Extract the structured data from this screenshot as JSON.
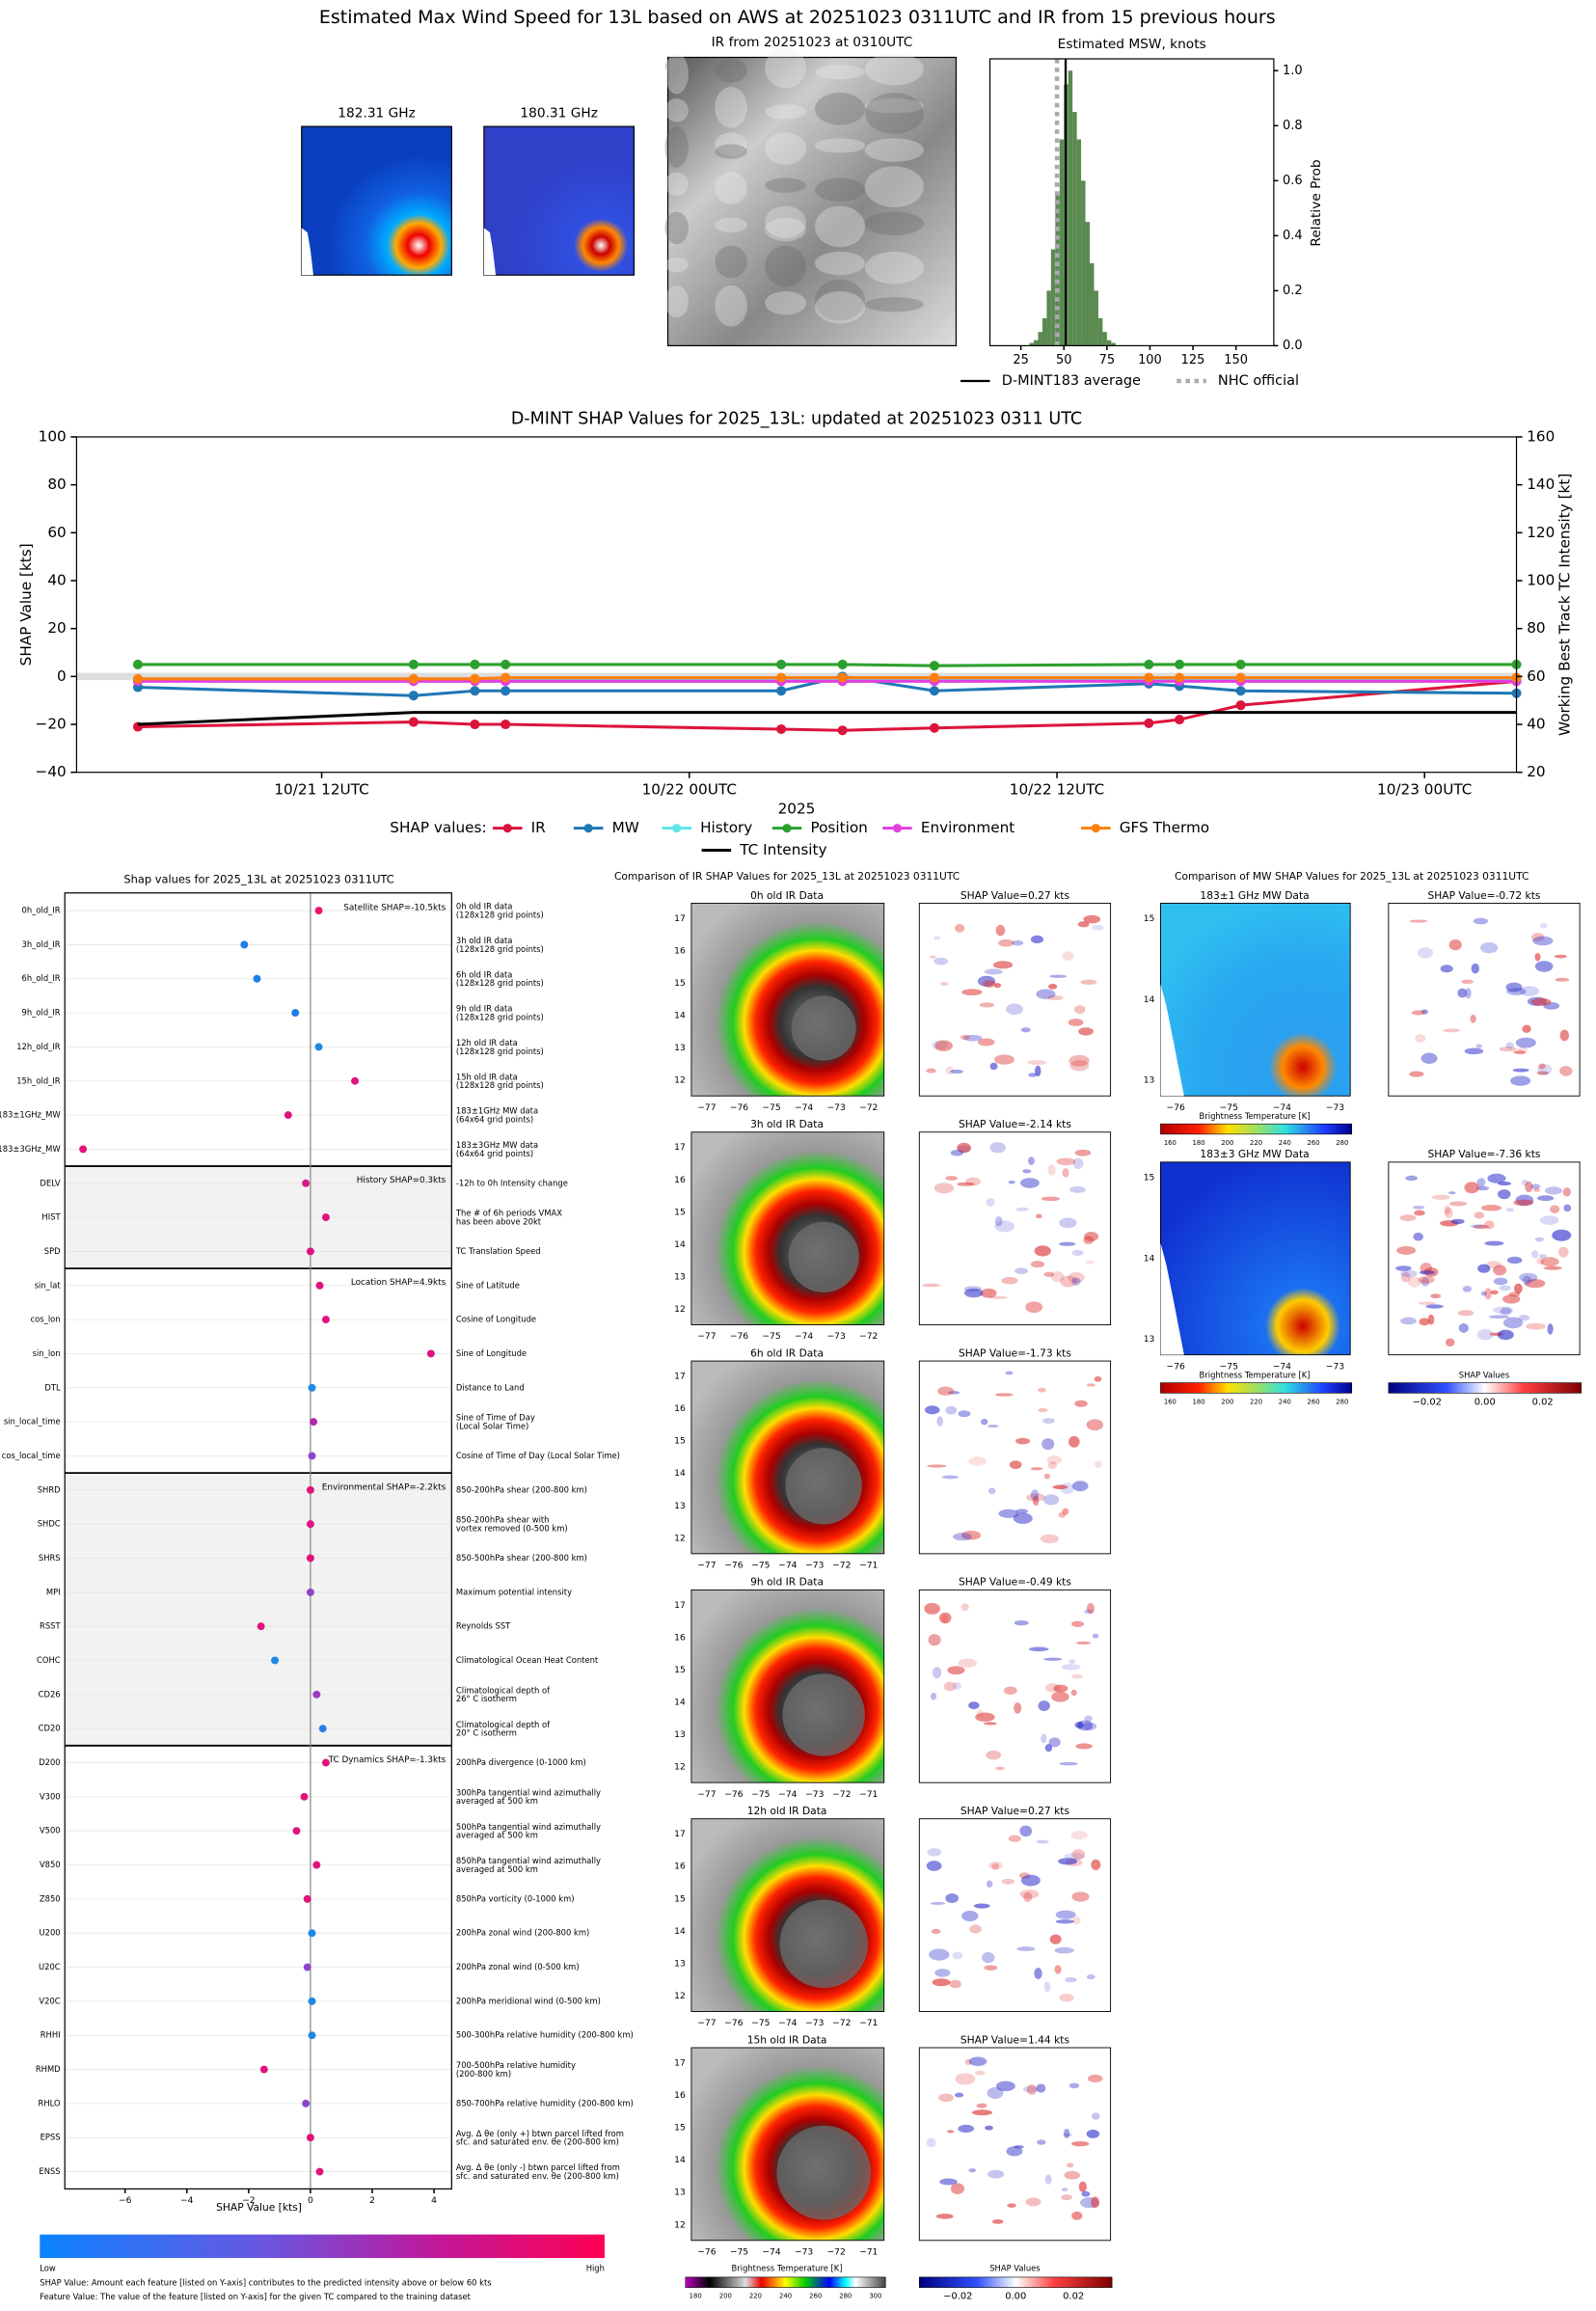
{
  "header": {
    "title": "Estimated Max Wind Speed for 13L based on AWS at 20251023 0311UTC and IR from 15 previous hours",
    "mw_titles": [
      "182.31 GHz",
      "180.31 GHz"
    ],
    "ir_title": "IR from 20251023 at 0310UTC"
  },
  "chart_data": [
    {
      "type": "histogram",
      "title": "Estimated MSW, knots",
      "ylabel": "Relative Prob",
      "color": "#5a8a50",
      "bins": [
        30,
        32.5,
        35,
        37.5,
        40,
        42.5,
        45,
        47.5,
        50,
        52.5,
        55,
        57.5,
        60,
        62.5,
        65,
        67.5,
        70,
        72.5,
        75,
        77.5,
        80
      ],
      "counts": [
        0.01,
        0.02,
        0.05,
        0.1,
        0.2,
        0.35,
        0.55,
        0.75,
        0.95,
        1.0,
        0.85,
        0.75,
        0.6,
        0.45,
        0.3,
        0.2,
        0.1,
        0.05,
        0.02,
        0.01
      ],
      "lines": [
        {
          "name": "D-MINT183 average",
          "value": 51,
          "color": "#000000",
          "style": "solid"
        },
        {
          "name": "NHC official",
          "value": 46,
          "color": "#aaaaaa",
          "style": "dotted"
        }
      ],
      "xlim": [
        7,
        172
      ],
      "xticks": [
        25,
        50,
        75,
        100,
        125,
        150
      ],
      "ylim": [
        0,
        1.043
      ],
      "yticks": [
        {
          "value": 0,
          "label": "0.0"
        },
        {
          "value": 0.2,
          "label": "0.2"
        },
        {
          "value": 0.4,
          "label": "0.4"
        },
        {
          "value": 0.6,
          "label": "0.6"
        },
        {
          "value": 0.8,
          "label": "0.8"
        },
        {
          "value": 1,
          "label": "1.0"
        }
      ]
    },
    {
      "type": "line",
      "title": "D-MINT SHAP Values for 2025_13L: updated at 20251023 0311 UTC",
      "xlabel": "2025",
      "ylabel": "SHAP Value [kts]",
      "y2label": "Working Best Track TC Intensity [kt]",
      "legend_title": "SHAP values:",
      "x": [
        "2025-10-21T06",
        "2025-10-21T15",
        "2025-10-21T17",
        "2025-10-21T18",
        "2025-10-22T03",
        "2025-10-22T05",
        "2025-10-22T08",
        "2025-10-22T15",
        "2025-10-22T16",
        "2025-10-22T18",
        "2025-10-23T03"
      ],
      "xlim": [
        "2025-10-21T04",
        "2025-10-23T03"
      ],
      "xticks": [
        {
          "value": "2025-10-21T12",
          "label": "10/21 12UTC"
        },
        {
          "value": "2025-10-22T00",
          "label": "10/22 00UTC"
        },
        {
          "value": "2025-10-22T12",
          "label": "10/22 12UTC"
        },
        {
          "value": "2025-10-23T00",
          "label": "10/23 00UTC"
        }
      ],
      "ylim": [
        -40,
        100
      ],
      "yticks": [
        {
          "value": -40,
          "label": "−40"
        },
        {
          "value": -20,
          "label": "−20"
        },
        0,
        20,
        40,
        60,
        80,
        100
      ],
      "y2lim": [
        20,
        160
      ],
      "y2ticks": [
        20,
        40,
        60,
        80,
        100,
        120,
        140,
        160
      ],
      "series": [
        {
          "name": "IR",
          "color": "#dc143c",
          "values": [
            -21,
            -19,
            -20,
            -20,
            -22,
            -22.5,
            -21.5,
            -19.5,
            -18,
            -12,
            -2
          ]
        },
        {
          "name": "MW",
          "color": "#1f77b4",
          "values": [
            -4.5,
            -8,
            -6,
            -6,
            -6,
            0,
            -6,
            -3,
            -4,
            -6,
            -7
          ]
        },
        {
          "name": "History",
          "color": "#5ee5e5",
          "values": [
            -1,
            -1,
            -1,
            -1,
            -1,
            -1,
            -1,
            -1,
            -1,
            -1,
            -1
          ]
        },
        {
          "name": "Position",
          "color": "#2ca02c",
          "values": [
            5,
            5,
            5,
            5,
            5,
            5,
            4.5,
            5,
            5,
            5,
            5
          ]
        },
        {
          "name": "Environment",
          "color": "#e040e0",
          "values": [
            -2,
            -2,
            -2,
            -2,
            -2,
            -2,
            -2,
            -2,
            -2,
            -2,
            -2
          ]
        },
        {
          "name": "GFS Thermo",
          "color": "#ff7f0e",
          "values": [
            -1,
            -1,
            -1,
            -0.5,
            -0.5,
            -0.5,
            -0.5,
            -0.5,
            -0.5,
            -0.5,
            -0.5
          ]
        },
        {
          "name": "TC Intensity",
          "color": "#000000",
          "axis": "y2",
          "marker": false,
          "values": [
            40,
            45,
            45,
            45,
            45,
            45,
            45,
            45,
            45,
            45,
            45
          ]
        }
      ]
    },
    {
      "type": "dot",
      "title": "Shap values for 2025_13L at 20251023 0311UTC",
      "xlabel": "SHAP Value [kts]",
      "xlim": [
        -7.95,
        4.57
      ],
      "xticks": [
        {
          "value": -6,
          "label": "−6"
        },
        {
          "value": -4,
          "label": "−4"
        },
        {
          "value": -2,
          "label": "−2"
        },
        0,
        2,
        4
      ],
      "colorbar": {
        "low": "Low",
        "high": "High"
      },
      "notes": [
        "SHAP Value: Amount each feature [listed on Y-axis] contributes to the predicted intensity above or below 60 kts",
        "Feature Value: The value of the feature [listed on Y-axis] for the given TC compared to the training dataset"
      ],
      "groups": [
        {
          "label": "Satellite SHAP=-10.5kts",
          "features": [
            {
              "name": "0h_old_IR",
              "description": "0h old IR data\n(128x128 grid points)",
              "value": 0.27,
              "color": "#f0146e"
            },
            {
              "name": "3h_old_IR",
              "description": "3h old IR data\n(128x128 grid points)",
              "value": -2.14,
              "color": "#1e7ee8"
            },
            {
              "name": "6h_old_IR",
              "description": "6h old IR data\n(128x128 grid points)",
              "value": -1.73,
              "color": "#1e7ee8"
            },
            {
              "name": "9h_old_IR",
              "description": "9h old IR data\n(128x128 grid points)",
              "value": -0.49,
              "color": "#1e7ee8"
            },
            {
              "name": "12h_old_IR",
              "description": "12h old IR data\n(128x128 grid points)",
              "value": 0.27,
              "color": "#1e88e5"
            },
            {
              "name": "15h_old_IR",
              "description": "15h old IR data\n(128x128 grid points)",
              "value": 1.44,
              "color": "#e0137e"
            },
            {
              "name": "183±1GHz_MW",
              "description": "183±1GHz MW data\n(64x64 grid points)",
              "value": -0.72,
              "color": "#e0137e"
            },
            {
              "name": "183±3GHz_MW",
              "description": "183±3GHz MW data\n(64x64 grid points)",
              "value": -7.36,
              "color": "#e0137e"
            }
          ]
        },
        {
          "label": "History SHAP=0.3kts",
          "features": [
            {
              "name": "DELV",
              "description": "-12h to 0h Intensity change",
              "value": -0.15,
              "color": "#d41d8a"
            },
            {
              "name": "HIST",
              "description": "The # of 6h periods VMAX\nhas been above 20kt",
              "value": 0.5,
              "color": "#e0137e"
            },
            {
              "name": "SPD",
              "description": "TC Translation Speed",
              "value": 0,
              "color": "#e0137e"
            }
          ]
        },
        {
          "label": "Location SHAP=4.9kts",
          "features": [
            {
              "name": "sin_lat",
              "description": "Sine of Latitude",
              "value": 0.3,
              "color": "#e0137e"
            },
            {
              "name": "cos_lon",
              "description": "Cosine of Longitude",
              "value": 0.5,
              "color": "#e0137e"
            },
            {
              "name": "sin_lon",
              "description": "Sine of Longitude",
              "value": 3.9,
              "color": "#e0137e"
            },
            {
              "name": "DTL",
              "description": "Distance to Land",
              "value": 0.05,
              "color": "#1e88e5"
            },
            {
              "name": "sin_local_time",
              "description": "Sine of Time of Day\n(Local Solar Time)",
              "value": 0.1,
              "color": "#b526a8"
            },
            {
              "name": "cos_local_time",
              "description": "Cosine of Time of Day (Local Solar Time)",
              "value": 0.05,
              "color": "#8e44c8"
            }
          ]
        },
        {
          "label": "Environmental SHAP=-2.2kts",
          "features": [
            {
              "name": "SHRD",
              "description": "850-200hPa shear (200-800 km)",
              "value": 0,
              "color": "#e0137e"
            },
            {
              "name": "SHDC",
              "description": "850-200hPa shear with\nvortex removed (0-500 km)",
              "value": 0,
              "color": "#e0137e"
            },
            {
              "name": "SHRS",
              "description": "850-500hPa shear (200-800 km)",
              "value": 0,
              "color": "#e0137e"
            },
            {
              "name": "MPI",
              "description": "Maximum potential intensity",
              "value": 0,
              "color": "#8e44c8"
            },
            {
              "name": "RSST",
              "description": "Reynolds SST",
              "value": -1.6,
              "color": "#e0137e"
            },
            {
              "name": "COHC",
              "description": "Climatological Ocean Heat Content",
              "value": -1.15,
              "color": "#1e88e5"
            },
            {
              "name": "CD26",
              "description": "Climatological depth of\n26° C isotherm",
              "value": 0.2,
              "color": "#9c3ec0"
            },
            {
              "name": "CD20",
              "description": "Climatological depth of\n20° C isotherm",
              "value": 0.4,
              "color": "#2a7ee8"
            }
          ]
        },
        {
          "label": "TC Dynamics SHAP=-1.3kts",
          "features": [
            {
              "name": "D200",
              "description": "200hPa divergence (0-1000 km)",
              "value": 0.5,
              "color": "#e0137e"
            },
            {
              "name": "V300",
              "description": "300hPa tangential wind azimuthally\naveraged at 500 km",
              "value": -0.2,
              "color": "#e0137e"
            },
            {
              "name": "V500",
              "description": "500hPa tangential wind azimuthally\naveraged at 500 km",
              "value": -0.45,
              "color": "#e0137e"
            },
            {
              "name": "V850",
              "description": "850hPa tangential wind azimuthally\naveraged at 500 km",
              "value": 0.2,
              "color": "#e0137e"
            },
            {
              "name": "Z850",
              "description": "850hPa vorticity (0-1000 km)",
              "value": -0.1,
              "color": "#e0137e"
            },
            {
              "name": "U200",
              "description": "200hPa zonal wind (200-800 km)",
              "value": 0.05,
              "color": "#1e88e5"
            },
            {
              "name": "U20C",
              "description": "200hPa zonal wind (0-500 km)",
              "value": -0.1,
              "color": "#8e44c8"
            },
            {
              "name": "V20C",
              "description": "200hPa meridional wind (0-500 km)",
              "value": 0.05,
              "color": "#1e88e5"
            },
            {
              "name": "RHHI",
              "description": "500-300hPa relative humidity (200-800 km)",
              "value": 0.05,
              "color": "#1e88e5"
            },
            {
              "name": "RHMD",
              "description": "700-500hPa relative humidity\n(200-800 km)",
              "value": -1.5,
              "color": "#e0137e"
            },
            {
              "name": "RHLO",
              "description": "850-700hPa relative humidity (200-800 km)",
              "value": -0.15,
              "color": "#8e44c8"
            },
            {
              "name": "EPSS",
              "description": "Avg. Δ θe (only +) btwn parcel lifted from\nsfc. and saturated env. θe (200-800 km)",
              "value": 0,
              "color": "#e0137e"
            },
            {
              "name": "ENSS",
              "description": "Avg. Δ θe (only -) btwn parcel lifted from\nsfc. and saturated env. θe (200-800 km)",
              "value": 0.3,
              "color": "#e0137e"
            }
          ]
        }
      ]
    }
  ],
  "ir_comparison": {
    "title": "Comparison of IR SHAP Values for 2025_13L at 20251023 0311UTC",
    "panels": [
      {
        "data_title": "0h old IR Data",
        "shap_title": "SHAP Value=0.27 kts",
        "xtick_labels": [
          "−77",
          "−76",
          "−75",
          "−74",
          "−73",
          "−72"
        ],
        "ytick_labels": [
          "12",
          "13",
          "14",
          "15",
          "16",
          "17"
        ]
      },
      {
        "data_title": "3h old IR Data",
        "shap_title": "SHAP Value=-2.14 kts",
        "xtick_labels": [
          "−77",
          "−76",
          "−75",
          "−74",
          "−73",
          "−72"
        ],
        "ytick_labels": [
          "12",
          "13",
          "14",
          "15",
          "16",
          "17"
        ]
      },
      {
        "data_title": "6h old IR Data",
        "shap_title": "SHAP Value=-1.73 kts",
        "xtick_labels": [
          "−77",
          "−76",
          "−75",
          "−74",
          "−73",
          "−72",
          "−71"
        ],
        "ytick_labels": [
          "12",
          "13",
          "14",
          "15",
          "16",
          "17"
        ]
      },
      {
        "data_title": "9h old IR Data",
        "shap_title": "SHAP Value=-0.49 kts",
        "xtick_labels": [
          "−77",
          "−76",
          "−75",
          "−74",
          "−73",
          "−72",
          "−71"
        ],
        "ytick_labels": [
          "12",
          "13",
          "14",
          "15",
          "16",
          "17"
        ]
      },
      {
        "data_title": "12h old IR Data",
        "shap_title": "SHAP Value=0.27 kts",
        "xtick_labels": [
          "−77",
          "−76",
          "−75",
          "−74",
          "−73",
          "−72",
          "−71"
        ],
        "ytick_labels": [
          "12",
          "13",
          "14",
          "15",
          "16",
          "17"
        ]
      },
      {
        "data_title": "15h old IR Data",
        "shap_title": "SHAP Value=1.44 kts",
        "xtick_labels": [
          "−76",
          "−75",
          "−74",
          "−73",
          "−72",
          "−71"
        ],
        "ytick_labels": [
          "12",
          "13",
          "14",
          "15",
          "16",
          "17"
        ]
      }
    ],
    "colorbars": [
      {
        "label": "Brightness Temperature [K]",
        "tick_labels": [
          "180",
          "200",
          "220",
          "240",
          "260",
          "280",
          "300"
        ]
      },
      {
        "label": "SHAP Values",
        "tick_labels": [
          "−0.02",
          "0.00",
          "0.02"
        ]
      }
    ]
  },
  "mw_comparison": {
    "title": "Comparison of MW SHAP Values for 2025_13L at 20251023 0311UTC",
    "panels": [
      {
        "data_title": "183±1 GHz MW Data",
        "shap_title": "SHAP Value=-0.72 kts",
        "xtick_labels": [
          "−76",
          "−75",
          "−74",
          "−73"
        ],
        "ytick_labels": [
          "13",
          "14",
          "15"
        ],
        "colorbar": {
          "label": "Brightness Temperature [K]",
          "tick_labels": [
            "160",
            "180",
            "200",
            "220",
            "240",
            "260",
            "280"
          ]
        }
      },
      {
        "data_title": "183±3 GHz MW Data",
        "shap_title": "SHAP Value=-7.36 kts",
        "xtick_labels": [
          "−76",
          "−75",
          "−74",
          "−73"
        ],
        "ytick_labels": [
          "13",
          "14",
          "15"
        ],
        "colorbar": {
          "label": "Brightness Temperature [K]",
          "tick_labels": [
            "160",
            "180",
            "200",
            "220",
            "240",
            "260",
            "280"
          ]
        }
      }
    ],
    "shap_colorbar": {
      "label": "SHAP Values",
      "tick_labels": [
        "−0.02",
        "0.00",
        "0.02"
      ]
    }
  }
}
